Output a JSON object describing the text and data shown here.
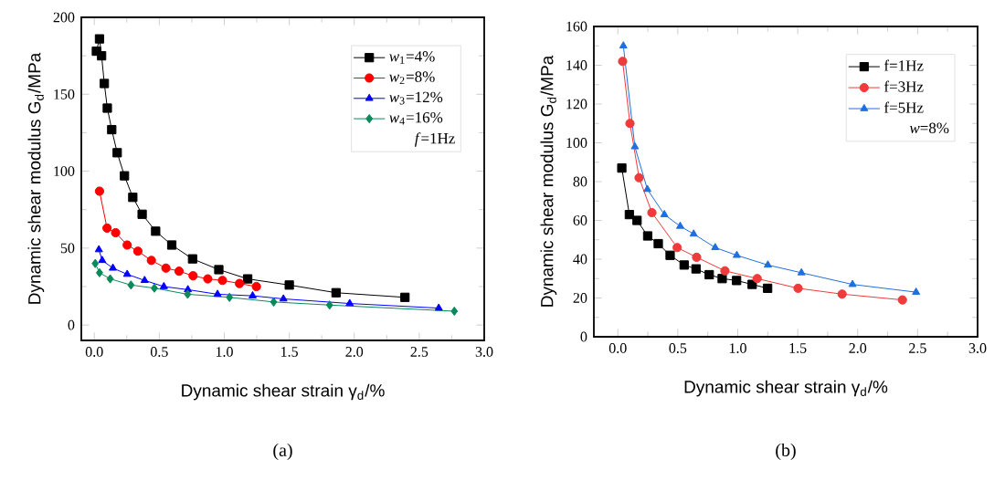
{
  "chart_data": [
    {
      "type": "line",
      "xlabel": "Dynamic shear strain γ$_{d}$/%",
      "ylabel": "Dynamic shear modulus G$_{d}$/MPa",
      "xlim": [
        -0.1,
        3.0
      ],
      "ylim": [
        -10,
        200
      ],
      "xticks": [
        {
          "value": 0,
          "label": "0.0"
        },
        {
          "value": 0.5,
          "label": "0.5"
        },
        {
          "value": 1,
          "label": "1.0"
        },
        {
          "value": 1.5,
          "label": "1.5"
        },
        {
          "value": 2,
          "label": "2.0"
        },
        {
          "value": 2.5,
          "label": "2.5"
        },
        {
          "value": 3,
          "label": "3.0"
        }
      ],
      "yticks": [
        0,
        50,
        100,
        150,
        200
      ],
      "legend": "top right",
      "line_style": "solid",
      "grid": false,
      "annotations": [
        "*f*=1Hz",
        "(a)"
      ],
      "series": [
        {
          "name": "*w*$_{1}$=4%",
          "color": "#000000",
          "marker": "square",
          "x": [
            0.016,
            0.04,
            0.056,
            0.077,
            0.1,
            0.134,
            0.176,
            0.232,
            0.296,
            0.368,
            0.472,
            0.596,
            0.756,
            0.958,
            1.18,
            1.5,
            1.86,
            2.39
          ],
          "values": [
            178,
            186,
            175,
            157,
            141,
            127,
            112,
            97,
            83,
            72,
            61,
            52,
            43,
            36,
            30,
            26,
            21,
            18
          ]
        },
        {
          "name": "*w*$_{2}$=8%",
          "color": "#ff0000",
          "marker": "circle",
          "x": [
            0.04,
            0.098,
            0.164,
            0.253,
            0.335,
            0.439,
            0.551,
            0.652,
            0.76,
            0.873,
            0.986,
            1.117,
            1.247
          ],
          "values": [
            87,
            63,
            60,
            52,
            48,
            42,
            37,
            35,
            32,
            30,
            29,
            27,
            25
          ]
        },
        {
          "name": "*w*$_{3}$=12%",
          "color": "#0000ff",
          "marker": "triangle",
          "x": [
            0.035,
            0.061,
            0.143,
            0.253,
            0.387,
            0.535,
            0.72,
            0.948,
            1.218,
            1.455,
            1.965,
            2.65
          ],
          "values": [
            49,
            42,
            37,
            33,
            29,
            25,
            23,
            20,
            19,
            17,
            14,
            11
          ]
        },
        {
          "name": "*w*$_{4}$=16%",
          "color": "#0a8a5a",
          "marker": "diamond",
          "x": [
            0.007,
            0.04,
            0.122,
            0.282,
            0.462,
            0.718,
            1.04,
            1.38,
            1.81,
            2.77
          ],
          "values": [
            40,
            34,
            30,
            26,
            24,
            20,
            18,
            15,
            13,
            9
          ]
        }
      ]
    },
    {
      "type": "line",
      "xlabel": "Dynamic shear strain γ$_{d}$/%",
      "ylabel": "Dynamic shear modulus G$_{d}$/MPa",
      "xlim": [
        -0.2,
        3.0
      ],
      "ylim": [
        0,
        160
      ],
      "xticks": [
        {
          "value": 0,
          "label": "0.0"
        },
        {
          "value": 0.5,
          "label": "0.5"
        },
        {
          "value": 1,
          "label": "1.0"
        },
        {
          "value": 1.5,
          "label": "1.5"
        },
        {
          "value": 2,
          "label": "2.0"
        },
        {
          "value": 2.5,
          "label": "2.5"
        },
        {
          "value": 3,
          "label": "3.0"
        }
      ],
      "yticks": [
        0,
        20,
        40,
        60,
        80,
        100,
        120,
        140,
        160
      ],
      "legend": "top right",
      "line_style": "solid",
      "grid": false,
      "annotations": [
        "*w*=8%",
        "(b)"
      ],
      "series": [
        {
          "name": "f=1Hz",
          "color": "#000000",
          "marker": "square",
          "x": [
            0.033,
            0.096,
            0.16,
            0.249,
            0.337,
            0.436,
            0.553,
            0.652,
            0.762,
            0.87,
            0.99,
            1.12,
            1.249
          ],
          "values": [
            87,
            63,
            60,
            52,
            48,
            42,
            37,
            35,
            32,
            30,
            29,
            27,
            25
          ]
        },
        {
          "name": "f=3Hz",
          "color": "#ef3b3b",
          "marker": "circle",
          "x": [
            0.04,
            0.101,
            0.177,
            0.284,
            0.495,
            0.657,
            0.893,
            1.162,
            1.503,
            1.87,
            2.373
          ],
          "values": [
            142,
            110,
            82,
            64,
            46,
            41,
            34,
            30,
            25,
            22,
            19
          ]
        },
        {
          "name": "f=5Hz",
          "color": "#1f6fe0",
          "marker": "triangle",
          "x": [
            0.046,
            0.142,
            0.246,
            0.388,
            0.52,
            0.632,
            0.812,
            0.992,
            1.251,
            1.531,
            1.957,
            2.487
          ],
          "values": [
            150,
            98,
            76,
            63,
            57,
            53,
            46,
            42,
            37,
            33,
            27,
            23
          ]
        }
      ]
    }
  ]
}
